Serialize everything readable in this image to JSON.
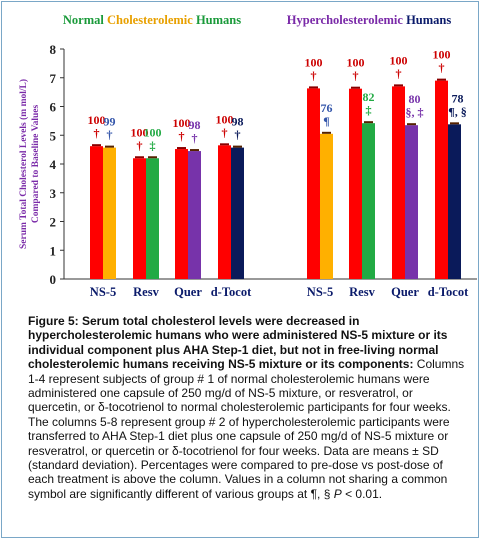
{
  "chart_data": {
    "type": "bar",
    "ylabel": "Serum Total Cholesterol Levels (m mol/L) Compared to Baseline Values",
    "ylim": [
      0,
      8
    ],
    "yticks": [
      "0",
      "1",
      "2",
      "3",
      "4",
      "5",
      "6",
      "7",
      "8"
    ],
    "groups": [
      {
        "title_parts": [
          {
            "text": "Normal ",
            "color": "#1a9a3a"
          },
          {
            "text": "Cholesterolemic",
            "color": "#e8a000"
          },
          {
            "text": " Humans",
            "color": "#1a9a3a"
          }
        ]
      },
      {
        "title_parts": [
          {
            "text": "Hypercholesterolemic",
            "color": "#7a2aa8"
          },
          {
            "text": "  Humans",
            "color": "#0a1a6a"
          }
        ]
      }
    ],
    "categories": [
      "NS-5",
      "Resv",
      "Quer",
      "d-Tocot",
      "NS-5",
      "Resv",
      "Quer",
      "d-Tocot"
    ],
    "pre": {
      "color": "#ff0000",
      "values": [
        4.62,
        4.2,
        4.52,
        4.65,
        6.63,
        6.62,
        6.7,
        6.9
      ]
    },
    "post": {
      "colors": [
        "#ffb000",
        "#22aa44",
        "#7733aa",
        "#0a1a5a",
        "#ffb000",
        "#22aa44",
        "#7733aa",
        "#0a1a5a"
      ],
      "values": [
        4.57,
        4.2,
        4.45,
        4.57,
        5.05,
        5.42,
        5.35,
        5.38
      ]
    },
    "pre_labels": [
      {
        "pct": "100",
        "sym": "†"
      },
      {
        "pct": "100",
        "sym": "†"
      },
      {
        "pct": "100",
        "sym": "†"
      },
      {
        "pct": "100",
        "sym": "†"
      },
      {
        "pct": "100",
        "sym": "†"
      },
      {
        "pct": "100",
        "sym": "†"
      },
      {
        "pct": "100",
        "sym": "†"
      },
      {
        "pct": "100",
        "sym": "†"
      }
    ],
    "post_labels": [
      {
        "pct": "99",
        "sym": "†"
      },
      {
        "pct": "100",
        "sym": "‡"
      },
      {
        "pct": "98",
        "sym": "†"
      },
      {
        "pct": "98",
        "sym": "†"
      },
      {
        "pct": "76",
        "sym": "¶"
      },
      {
        "pct": "82",
        "sym": "‡"
      },
      {
        "pct": "80",
        "sym": "§, ‡"
      },
      {
        "pct": "78",
        "sym": "¶, §"
      }
    ]
  },
  "caption": {
    "lead": "Figure 5: Serum total cholesterol levels were decreased in hypercholesterolemic humans who were administered NS-5 mixture or its individual component plus AHA Step-1 diet, but not in free-living normal cholesterolemic humans receiving NS-5 mixture or its components:",
    "body": " Columns 1-4 represent subjects of group # 1 of normal cholesterolemic humans were administered one capsule of 250 mg/d of NS-5 mixture, or resveratrol, or quercetin, or δ-tocotrienol to normal cholesterolemic participants for four weeks. The columns 5-8 represent group # 2 of hypercholesterolemic participants were transferred to AHA Step-1 diet plus one capsule of 250 mg/d of NS-5 mixture or resveratrol, or quercetin or δ-tocotrienol for four weeks. Data are means ± SD (standard deviation). Percentages were compared to pre-dose vs post-dose of each treatment is above the column. Values in a column not sharing a common symbol are significantly different of various groups at ¶, § ",
    "p_label": "P",
    "tail": " < 0.01."
  },
  "colors": {
    "text_red": "#cc0000",
    "tick_text": "#222222",
    "axis": "#333333"
  }
}
